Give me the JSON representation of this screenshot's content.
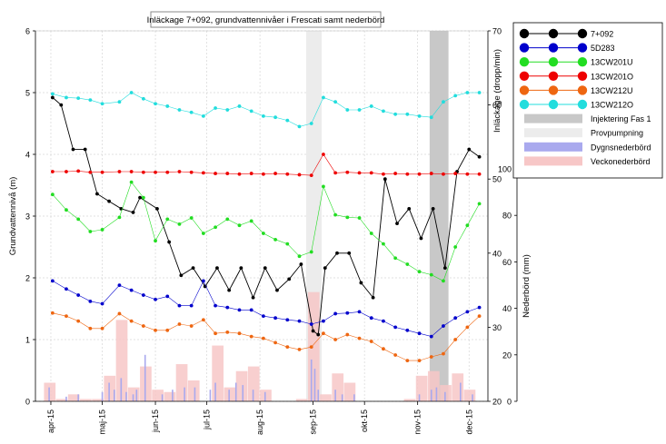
{
  "chart_data": {
    "type": "line",
    "title": "Inläckage 7+092, grundvattennivåer i Frescati samt nederbörd",
    "ylabel_left": "Grundvattennivå (m)",
    "ylabel_right_leak": "Inläckage (dropp/min)",
    "ylabel_right_precip": "Nederbörd (mm)",
    "ylim": [
      0,
      6
    ],
    "leak_ylim": [
      20,
      70
    ],
    "precip_ylim": [
      0,
      100
    ],
    "grid": true,
    "legend_position": "right",
    "x_ticks": [
      {
        "label": "apr-15",
        "date": "2015-04-01"
      },
      {
        "label": "maj-15",
        "date": "2015-05-01"
      },
      {
        "label": "jun-15",
        "date": "2015-06-01"
      },
      {
        "label": "jul-15",
        "date": "2015-07-01"
      },
      {
        "label": "aug-15",
        "date": "2015-08-01"
      },
      {
        "label": "sep-15",
        "date": "2015-09-01"
      },
      {
        "label": "okt-15",
        "date": "2015-10-01"
      },
      {
        "label": "nov-15",
        "date": "2015-11-01"
      },
      {
        "label": "dec-15",
        "date": "2015-12-01"
      }
    ],
    "y_ticks": [
      "0",
      "1",
      "2",
      "3",
      "4",
      "5",
      "6"
    ],
    "leak_ticks": [
      "20",
      "30",
      "40",
      "50",
      "60",
      "70"
    ],
    "precip_ticks": [
      "0",
      "20",
      "40",
      "60",
      "80",
      "100"
    ],
    "date_range": [
      "2015-03-23",
      "2015-12-12"
    ],
    "periods": [
      {
        "name": "Injektering Fas 1",
        "start": "2015-11-08",
        "end": "2015-11-19",
        "color": "#c8c8c8"
      },
      {
        "name": "Provpumpning",
        "start": "2015-08-28",
        "end": "2015-09-06",
        "color": "#ececec"
      }
    ],
    "series": [
      {
        "name": "7+092",
        "color": "#000000",
        "axis": "leak",
        "x": [
          "2015-04-02",
          "2015-04-07",
          "2015-04-14",
          "2015-04-21",
          "2015-04-28",
          "2015-05-05",
          "2015-05-12",
          "2015-05-19",
          "2015-05-23",
          "2015-06-02",
          "2015-06-09",
          "2015-06-16",
          "2015-06-23",
          "2015-06-30",
          "2015-07-07",
          "2015-07-14",
          "2015-07-21",
          "2015-07-28",
          "2015-08-04",
          "2015-08-11",
          "2015-08-18",
          "2015-08-25",
          "2015-09-01",
          "2015-09-04",
          "2015-09-08",
          "2015-09-15",
          "2015-09-22",
          "2015-09-29",
          "2015-10-06",
          "2015-10-13",
          "2015-10-20",
          "2015-10-27",
          "2015-11-03",
          "2015-11-10",
          "2015-11-17",
          "2015-11-24",
          "2015-12-01",
          "2015-12-07"
        ],
        "values": [
          61,
          60,
          54,
          54,
          48,
          47,
          46,
          45.5,
          47.5,
          46,
          41.5,
          37,
          38,
          35.5,
          38,
          35,
          38,
          34,
          38,
          35,
          36.5,
          38.5,
          29.5,
          29,
          38,
          40,
          40,
          36,
          34,
          50,
          44,
          46,
          42,
          46,
          38,
          51,
          54,
          53
        ]
      },
      {
        "name": "5D283",
        "color": "#0000cc",
        "x": [
          "2015-04-02",
          "2015-04-10",
          "2015-04-17",
          "2015-04-24",
          "2015-05-01",
          "2015-05-11",
          "2015-05-18",
          "2015-05-25",
          "2015-06-01",
          "2015-06-08",
          "2015-06-15",
          "2015-06-22",
          "2015-06-29",
          "2015-07-06",
          "2015-07-13",
          "2015-07-20",
          "2015-07-27",
          "2015-08-03",
          "2015-08-10",
          "2015-08-17",
          "2015-08-24",
          "2015-08-31",
          "2015-09-07",
          "2015-09-14",
          "2015-09-21",
          "2015-09-28",
          "2015-10-05",
          "2015-10-12",
          "2015-10-19",
          "2015-10-26",
          "2015-11-02",
          "2015-11-09",
          "2015-11-16",
          "2015-11-23",
          "2015-11-30",
          "2015-12-07"
        ],
        "values": [
          1.95,
          1.82,
          1.72,
          1.62,
          1.58,
          1.88,
          1.8,
          1.72,
          1.65,
          1.7,
          1.55,
          1.55,
          1.95,
          1.55,
          1.52,
          1.48,
          1.48,
          1.38,
          1.35,
          1.32,
          1.3,
          1.25,
          1.3,
          1.42,
          1.43,
          1.45,
          1.35,
          1.3,
          1.2,
          1.15,
          1.1,
          1.05,
          1.22,
          1.35,
          1.45,
          1.52
        ]
      },
      {
        "name": "13CW201U",
        "color": "#22dd22",
        "x": [
          "2015-04-02",
          "2015-04-10",
          "2015-04-17",
          "2015-04-24",
          "2015-05-01",
          "2015-05-11",
          "2015-05-18",
          "2015-05-25",
          "2015-06-01",
          "2015-06-08",
          "2015-06-15",
          "2015-06-22",
          "2015-06-29",
          "2015-07-06",
          "2015-07-13",
          "2015-07-20",
          "2015-07-27",
          "2015-08-03",
          "2015-08-10",
          "2015-08-17",
          "2015-08-24",
          "2015-08-31",
          "2015-09-07",
          "2015-09-14",
          "2015-09-21",
          "2015-09-28",
          "2015-10-05",
          "2015-10-12",
          "2015-10-19",
          "2015-10-26",
          "2015-11-02",
          "2015-11-09",
          "2015-11-16",
          "2015-11-23",
          "2015-11-30",
          "2015-12-07"
        ],
        "values": [
          3.35,
          3.1,
          2.95,
          2.75,
          2.78,
          2.98,
          3.55,
          3.3,
          2.6,
          2.95,
          2.87,
          2.97,
          2.72,
          2.82,
          2.95,
          2.85,
          2.92,
          2.72,
          2.62,
          2.55,
          2.35,
          2.42,
          3.48,
          3.02,
          2.98,
          2.97,
          2.72,
          2.55,
          2.32,
          2.22,
          2.1,
          2.05,
          1.95,
          2.5,
          2.85,
          3.2
        ]
      },
      {
        "name": "13CW201O",
        "color": "#ee0000",
        "x": [
          "2015-04-02",
          "2015-04-10",
          "2015-04-17",
          "2015-04-24",
          "2015-05-01",
          "2015-05-11",
          "2015-05-18",
          "2015-05-25",
          "2015-06-01",
          "2015-06-08",
          "2015-06-15",
          "2015-06-22",
          "2015-06-29",
          "2015-07-06",
          "2015-07-13",
          "2015-07-20",
          "2015-07-27",
          "2015-08-03",
          "2015-08-10",
          "2015-08-17",
          "2015-08-24",
          "2015-08-31",
          "2015-09-07",
          "2015-09-14",
          "2015-09-21",
          "2015-09-28",
          "2015-10-05",
          "2015-10-12",
          "2015-10-19",
          "2015-10-26",
          "2015-11-02",
          "2015-11-09",
          "2015-11-16",
          "2015-11-23",
          "2015-11-30",
          "2015-12-07"
        ],
        "values": [
          3.72,
          3.72,
          3.73,
          3.71,
          3.71,
          3.72,
          3.72,
          3.71,
          3.71,
          3.71,
          3.72,
          3.71,
          3.7,
          3.69,
          3.69,
          3.68,
          3.69,
          3.68,
          3.69,
          3.68,
          3.67,
          3.66,
          4.0,
          3.7,
          3.71,
          3.7,
          3.7,
          3.68,
          3.69,
          3.68,
          3.68,
          3.69,
          3.68,
          3.69,
          3.68,
          3.68
        ]
      },
      {
        "name": "13CW212U",
        "color": "#ee6611",
        "x": [
          "2015-04-02",
          "2015-04-10",
          "2015-04-17",
          "2015-04-24",
          "2015-05-01",
          "2015-05-11",
          "2015-05-18",
          "2015-05-25",
          "2015-06-01",
          "2015-06-08",
          "2015-06-15",
          "2015-06-22",
          "2015-06-29",
          "2015-07-06",
          "2015-07-13",
          "2015-07-20",
          "2015-07-27",
          "2015-08-03",
          "2015-08-10",
          "2015-08-17",
          "2015-08-24",
          "2015-08-31",
          "2015-09-07",
          "2015-09-14",
          "2015-09-21",
          "2015-09-28",
          "2015-10-05",
          "2015-10-12",
          "2015-10-19",
          "2015-10-26",
          "2015-11-02",
          "2015-11-09",
          "2015-11-16",
          "2015-11-23",
          "2015-11-30",
          "2015-12-07"
        ],
        "values": [
          1.43,
          1.38,
          1.3,
          1.18,
          1.18,
          1.42,
          1.3,
          1.22,
          1.15,
          1.15,
          1.25,
          1.22,
          1.32,
          1.1,
          1.12,
          1.1,
          1.05,
          1.02,
          0.95,
          0.88,
          0.84,
          0.88,
          1.1,
          1.0,
          1.08,
          1.02,
          0.97,
          0.85,
          0.75,
          0.66,
          0.66,
          0.72,
          0.77,
          1.0,
          1.2,
          1.38
        ]
      },
      {
        "name": "13CW212O",
        "color": "#22dddd",
        "x": [
          "2015-04-02",
          "2015-04-10",
          "2015-04-17",
          "2015-04-24",
          "2015-05-01",
          "2015-05-11",
          "2015-05-18",
          "2015-05-25",
          "2015-06-01",
          "2015-06-08",
          "2015-06-15",
          "2015-06-22",
          "2015-06-29",
          "2015-07-06",
          "2015-07-13",
          "2015-07-20",
          "2015-07-27",
          "2015-08-03",
          "2015-08-10",
          "2015-08-17",
          "2015-08-24",
          "2015-08-31",
          "2015-09-07",
          "2015-09-14",
          "2015-09-21",
          "2015-09-28",
          "2015-10-05",
          "2015-10-12",
          "2015-10-19",
          "2015-10-26",
          "2015-11-02",
          "2015-11-09",
          "2015-11-16",
          "2015-11-23",
          "2015-11-30",
          "2015-12-07"
        ],
        "values": [
          4.98,
          4.92,
          4.91,
          4.88,
          4.82,
          4.85,
          5.0,
          4.9,
          4.82,
          4.78,
          4.72,
          4.68,
          4.62,
          4.75,
          4.72,
          4.78,
          4.7,
          4.62,
          4.6,
          4.55,
          4.45,
          4.5,
          4.92,
          4.85,
          4.72,
          4.72,
          4.78,
          4.7,
          4.65,
          4.65,
          4.62,
          4.6,
          4.85,
          4.95,
          5.0,
          5.0
        ]
      }
    ],
    "precip_weekly": {
      "name": "Veckonederbörd",
      "color": "#f7c7c7",
      "start": [
        "2015-03-28",
        "2015-04-04",
        "2015-04-11",
        "2015-04-18",
        "2015-04-25",
        "2015-05-02",
        "2015-05-09",
        "2015-05-16",
        "2015-05-23",
        "2015-05-30",
        "2015-06-06",
        "2015-06-13",
        "2015-06-20",
        "2015-06-27",
        "2015-07-04",
        "2015-07-11",
        "2015-07-18",
        "2015-07-25",
        "2015-08-01",
        "2015-08-08",
        "2015-08-15",
        "2015-08-22",
        "2015-08-29",
        "2015-09-05",
        "2015-09-12",
        "2015-09-19",
        "2015-09-26",
        "2015-10-03",
        "2015-10-10",
        "2015-10-17",
        "2015-10-24",
        "2015-10-31",
        "2015-11-07",
        "2015-11-14",
        "2015-11-21",
        "2015-11-28",
        "2015-12-05"
      ],
      "values": [
        8,
        1,
        3,
        1,
        1,
        11,
        35,
        6,
        15,
        5,
        4,
        16,
        9,
        0,
        24,
        6,
        13,
        15,
        5,
        0,
        0,
        1,
        47,
        3,
        12,
        8,
        0,
        0,
        0,
        0,
        1,
        11,
        13,
        7,
        12,
        5,
        0
      ]
    },
    "precip_daily": {
      "name": "Dygnsnederbörd",
      "color": "#a9a9ee",
      "dates": [
        "2015-03-31",
        "2015-04-10",
        "2015-04-17",
        "2015-05-01",
        "2015-05-05",
        "2015-05-08",
        "2015-05-12",
        "2015-05-15",
        "2015-05-19",
        "2015-05-21",
        "2015-05-26",
        "2015-06-05",
        "2015-06-11",
        "2015-06-18",
        "2015-06-24",
        "2015-07-03",
        "2015-07-06",
        "2015-07-14",
        "2015-07-18",
        "2015-07-22",
        "2015-07-28",
        "2015-08-04",
        "2015-08-31",
        "2015-09-02",
        "2015-09-04",
        "2015-09-14",
        "2015-09-18",
        "2015-09-25",
        "2015-11-02",
        "2015-11-09",
        "2015-11-12",
        "2015-11-17",
        "2015-11-26",
        "2015-12-03"
      ],
      "values": [
        6,
        2,
        3,
        4,
        8,
        5,
        10,
        4,
        3,
        5,
        20,
        3,
        5,
        6,
        6,
        5,
        8,
        5,
        8,
        7,
        5,
        4,
        18,
        14,
        5,
        5,
        3,
        3,
        3,
        5,
        6,
        4,
        8,
        3
      ]
    }
  },
  "legend": [
    {
      "label": "7+092",
      "type": "line",
      "color": "#000000"
    },
    {
      "label": "5D283",
      "type": "line",
      "color": "#0000cc"
    },
    {
      "label": "13CW201U",
      "type": "line",
      "color": "#22dd22"
    },
    {
      "label": "13CW201O",
      "type": "line",
      "color": "#ee0000"
    },
    {
      "label": "13CW212U",
      "type": "line",
      "color": "#ee6611"
    },
    {
      "label": "13CW212O",
      "type": "line",
      "color": "#22dddd"
    },
    {
      "label": "Injektering Fas 1",
      "type": "bar",
      "color": "#c8c8c8"
    },
    {
      "label": "Provpumpning",
      "type": "bar",
      "color": "#ececec"
    },
    {
      "label": "Dygnsnederbörd",
      "type": "bar",
      "color": "#a9a9ee"
    },
    {
      "label": "Veckonederbörd",
      "type": "bar",
      "color": "#f7c7c7"
    }
  ]
}
